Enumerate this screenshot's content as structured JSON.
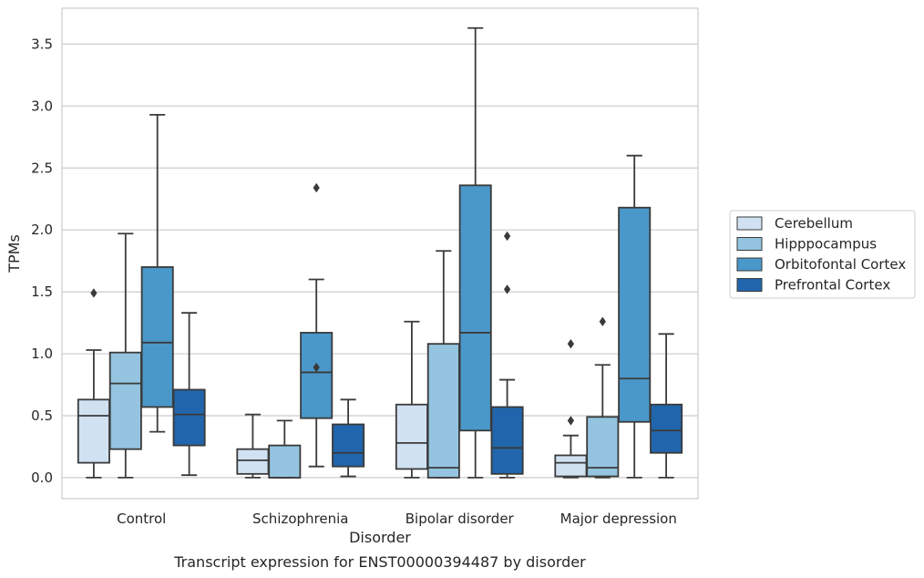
{
  "caption": "Transcript expression for ENST00000394487 by disorder",
  "chart_data": {
    "type": "box",
    "xlabel": "Disorder",
    "ylabel": "TPMs",
    "ylim": [
      -0.17,
      3.79
    ],
    "yticks": [
      0.0,
      0.5,
      1.0,
      1.5,
      2.0,
      2.5,
      3.0,
      3.5
    ],
    "ytick_labels": [
      "0.0",
      "0.5",
      "1.0",
      "1.5",
      "2.0",
      "2.5",
      "3.0",
      "3.5"
    ],
    "grid": "horizontal",
    "legend_position": "right",
    "categories": [
      "Control",
      "Schizophrenia",
      "Bipolar disorder",
      "Major depression"
    ],
    "series": [
      {
        "name": "Cerebellum",
        "color": "#d0e1f2",
        "boxes": [
          {
            "whislo": 0.0,
            "q1": 0.12,
            "med": 0.5,
            "q3": 0.63,
            "whishi": 1.03,
            "fliers": [
              1.49
            ]
          },
          {
            "whislo": 0.0,
            "q1": 0.03,
            "med": 0.14,
            "q3": 0.23,
            "whishi": 0.51,
            "fliers": []
          },
          {
            "whislo": 0.0,
            "q1": 0.07,
            "med": 0.28,
            "q3": 0.59,
            "whishi": 1.26,
            "fliers": []
          },
          {
            "whislo": 0.0,
            "q1": 0.01,
            "med": 0.12,
            "q3": 0.18,
            "whishi": 0.34,
            "fliers": [
              0.46,
              1.08
            ]
          }
        ]
      },
      {
        "name": "Hipppocampus",
        "color": "#94c4df",
        "boxes": [
          {
            "whislo": 0.0,
            "q1": 0.23,
            "med": 0.76,
            "q3": 1.01,
            "whishi": 1.97,
            "fliers": []
          },
          {
            "whislo": 0.0,
            "q1": 0.0,
            "med": 0.0,
            "q3": 0.26,
            "whishi": 0.46,
            "fliers": []
          },
          {
            "whislo": 0.0,
            "q1": 0.0,
            "med": 0.08,
            "q3": 1.08,
            "whishi": 1.83,
            "fliers": []
          },
          {
            "whislo": 0.0,
            "q1": 0.01,
            "med": 0.08,
            "q3": 0.49,
            "whishi": 0.91,
            "fliers": [
              1.26
            ]
          }
        ]
      },
      {
        "name": "Orbitofontal Cortex",
        "color": "#4a98c9",
        "boxes": [
          {
            "whislo": 0.37,
            "q1": 0.57,
            "med": 1.09,
            "q3": 1.7,
            "whishi": 2.93,
            "fliers": []
          },
          {
            "whislo": 0.09,
            "q1": 0.48,
            "med": 0.85,
            "q3": 1.17,
            "whishi": 1.6,
            "fliers": [
              0.89,
              2.34
            ]
          },
          {
            "whislo": 0.0,
            "q1": 0.38,
            "med": 1.17,
            "q3": 2.36,
            "whishi": 3.63,
            "fliers": []
          },
          {
            "whislo": 0.0,
            "q1": 0.45,
            "med": 0.8,
            "q3": 2.18,
            "whishi": 2.6,
            "fliers": []
          }
        ]
      },
      {
        "name": "Prefrontal Cortex",
        "color": "#2166ac",
        "boxes": [
          {
            "whislo": 0.02,
            "q1": 0.26,
            "med": 0.51,
            "q3": 0.71,
            "whishi": 1.33,
            "fliers": []
          },
          {
            "whislo": 0.01,
            "q1": 0.09,
            "med": 0.2,
            "q3": 0.43,
            "whishi": 0.63,
            "fliers": []
          },
          {
            "whislo": 0.0,
            "q1": 0.03,
            "med": 0.24,
            "q3": 0.57,
            "whishi": 0.79,
            "fliers": [
              1.52,
              1.95
            ]
          },
          {
            "whislo": 0.0,
            "q1": 0.2,
            "med": 0.38,
            "q3": 0.59,
            "whishi": 1.16,
            "fliers": []
          }
        ]
      }
    ]
  }
}
